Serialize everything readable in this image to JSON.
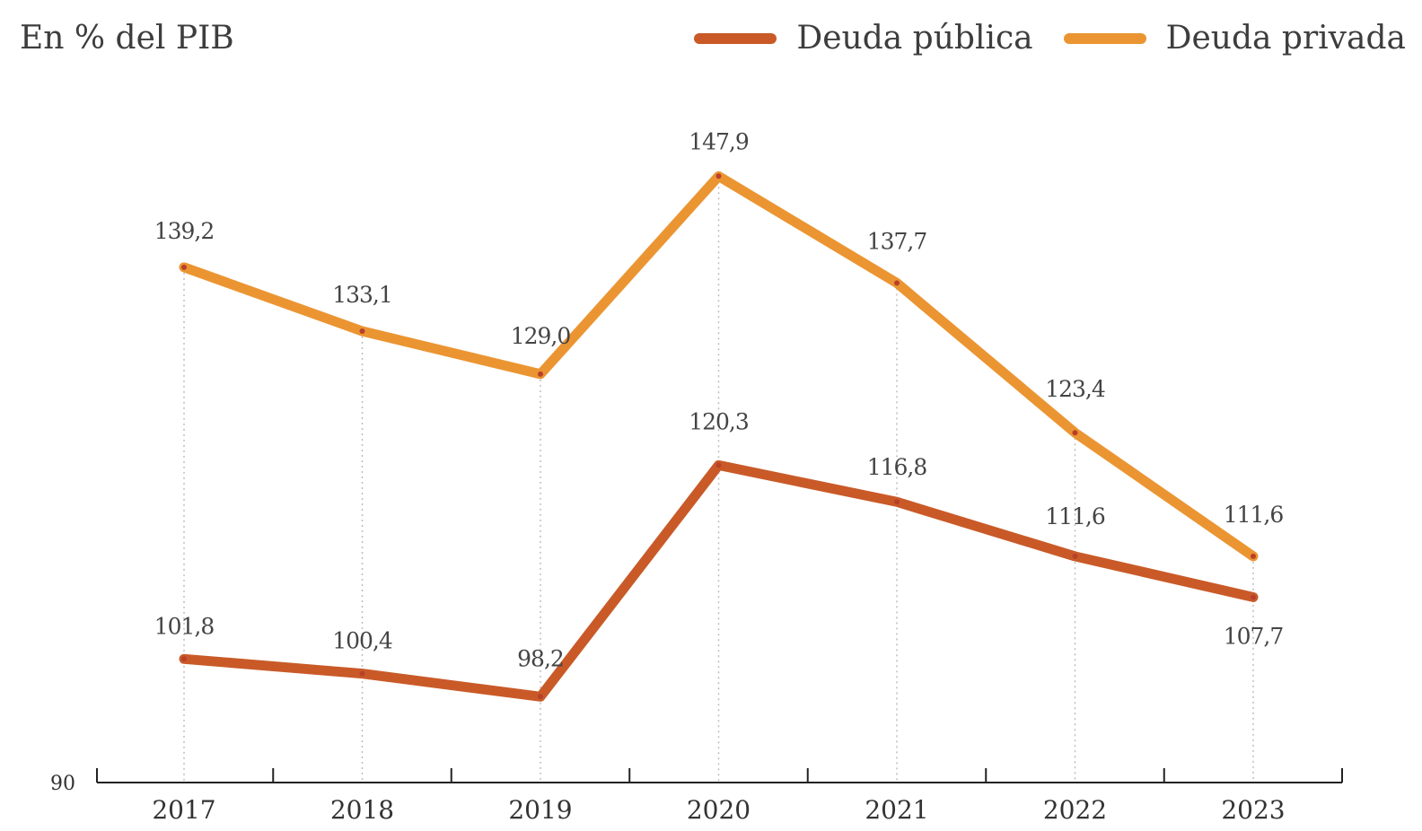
{
  "chart_data": {
    "type": "line",
    "unit_label": "En % del PIB",
    "categories": [
      "2017",
      "2018",
      "2019",
      "2020",
      "2021",
      "2022",
      "2023"
    ],
    "y_min_label": "90",
    "ylim": [
      90,
      152
    ],
    "grid": "vertical dotted guides at each year",
    "legend_position": "top-right",
    "series": [
      {
        "name": "Deuda pública",
        "color": "#c95a28",
        "values": [
          101.8,
          100.4,
          98.2,
          120.3,
          116.8,
          111.6,
          107.7
        ],
        "labels": [
          "101,8",
          "100,4",
          "98,2",
          "120,3",
          "116,8",
          "111,6",
          "107,7"
        ]
      },
      {
        "name": "Deuda privada",
        "color": "#eb9532",
        "values": [
          139.2,
          133.1,
          129.0,
          147.9,
          137.7,
          123.4,
          111.6
        ],
        "labels": [
          "139,2",
          "133,1",
          "129,0",
          "147,9",
          "137,7",
          "123,4",
          "111,6"
        ]
      }
    ]
  }
}
